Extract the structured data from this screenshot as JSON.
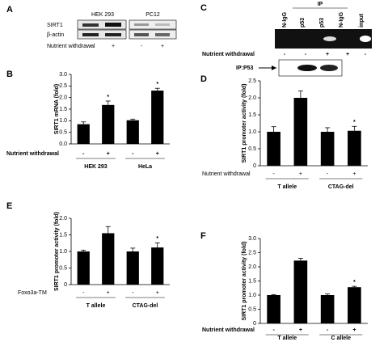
{
  "blot_a": {
    "panel": "A",
    "lanes": [
      "HEK 293",
      "PC12"
    ],
    "rows": [
      "SIRT1",
      "β-actin"
    ],
    "condition_label": "Nutrient withdrawal",
    "conditions": [
      "-",
      "+",
      "-",
      "+"
    ]
  },
  "blot_c": {
    "panel": "C",
    "header": "IP",
    "lanes": [
      "N-IgG",
      "p53",
      "p53",
      "N-IgG",
      "input"
    ],
    "condition_label": "Nutrient withdrawal",
    "conditions": [
      "-",
      "-",
      "+",
      "+",
      "-"
    ],
    "lower_label": "IP:P53"
  },
  "chart_data": [
    {
      "type": "bar",
      "panel": "B",
      "y_label": "SIRT1 mRNA (fold)",
      "categories": [
        "-",
        "+",
        "-",
        "+"
      ],
      "values": [
        0.85,
        1.68,
        1.02,
        2.3
      ],
      "errors": [
        0.1,
        0.17,
        0.05,
        0.1
      ],
      "markers": [
        null,
        "*",
        null,
        "*"
      ],
      "groups": [
        "HEK 293",
        "HeLa"
      ],
      "condition_label": "Nutrient withdrawal",
      "color": "#000000",
      "ylim": [
        0,
        3
      ],
      "yticks": [
        {
          "value": 0,
          "label": "0.0"
        },
        0.5,
        {
          "value": 1,
          "label": "1.0"
        },
        1.5,
        {
          "value": 2,
          "label": "2.0"
        },
        2.5,
        {
          "value": 3,
          "label": "3.0"
        }
      ]
    },
    {
      "type": "bar",
      "panel": "D",
      "y_label": "SIRT1 promoter activity (fold)",
      "categories": [
        "-",
        "+",
        "-",
        "+"
      ],
      "values": [
        1.0,
        2.0,
        1.0,
        1.03
      ],
      "errors": [
        0.15,
        0.2,
        0.12,
        0.13
      ],
      "markers": [
        null,
        null,
        null,
        "*"
      ],
      "groups": [
        "T allele",
        "CTAG-del"
      ],
      "condition_label": "Nutrient withdrawal",
      "color": "#000000",
      "ylim": [
        0,
        2.5
      ],
      "yticks": [
        0,
        0.5,
        {
          "value": 1,
          "label": "1.0"
        },
        1.5,
        {
          "value": 2,
          "label": "2.0"
        },
        2.5
      ]
    },
    {
      "type": "bar",
      "panel": "E",
      "y_label": "SIRT1 promoter activity (fold)",
      "categories": [
        "-",
        "+",
        "-",
        "+"
      ],
      "values": [
        1.0,
        1.55,
        1.0,
        1.12
      ],
      "errors": [
        0.04,
        0.2,
        0.1,
        0.14
      ],
      "markers": [
        null,
        null,
        null,
        "*"
      ],
      "groups": [
        "T allele",
        "CTAG-del"
      ],
      "condition_label": "Foxo3a-TM",
      "color": "#000000",
      "ylim": [
        0,
        2
      ],
      "yticks": [
        0,
        0.5,
        {
          "value": 1,
          "label": "1.0"
        },
        1.5,
        {
          "value": 2,
          "label": "2.0"
        }
      ]
    },
    {
      "type": "bar",
      "panel": "F",
      "y_label": "SIRT1 promoter activity (fold)",
      "categories": [
        "-",
        "+",
        "-",
        "+"
      ],
      "values": [
        1.0,
        2.22,
        1.0,
        1.28
      ],
      "errors": [
        0.02,
        0.08,
        0.04,
        0.03
      ],
      "markers": [
        null,
        null,
        null,
        "*"
      ],
      "groups": [
        "T allele",
        "C allele"
      ],
      "condition_label": "Nutrient withdrawal",
      "color": "#000000",
      "ylim": [
        0,
        3
      ],
      "yticks": [
        0,
        0.5,
        {
          "value": 1,
          "label": "1.0"
        },
        1.5,
        {
          "value": 2,
          "label": "2.0"
        },
        2.5,
        {
          "value": 3,
          "label": "3.0"
        }
      ]
    }
  ]
}
